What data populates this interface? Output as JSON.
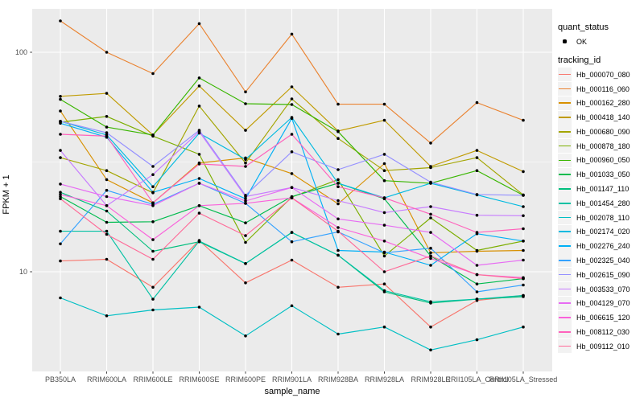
{
  "figure": {
    "background": "#FFFFFF",
    "panel_background": "#EBEBEB",
    "grid_color": "#FFFFFF",
    "axis_text_color": "#4D4D4D",
    "point_color": "#000000"
  },
  "legend": {
    "quant_status_title": "quant_status",
    "quant_status_value": "OK",
    "tracking_title": "tracking_id"
  },
  "chart_data": {
    "type": "line",
    "title": "",
    "xlabel": "sample_name",
    "ylabel": "FPKM + 1",
    "y_scale": "log10",
    "y_ticks": [
      {
        "label": "100",
        "value": 100
      },
      {
        "label": "10",
        "value": 10
      }
    ],
    "y_minor_ticks": [
      31.62
    ],
    "ylim": [
      3.8,
      170
    ],
    "legend_position": "right",
    "grid": true,
    "point_shape": "solid-dot",
    "quant_status_series": "OK",
    "categories": [
      "PB350LA",
      "RRIM600LA",
      "RRIM600LE",
      "RRIM600SE",
      "RRIM600PE",
      "RRIM901LA",
      "RRIM928BA",
      "RRIM928LA",
      "RRIM928LE",
      "RRII105LA_Control",
      "RRII105LA_Stressed"
    ],
    "series": [
      {
        "name": "Hb_000070_080",
        "color": "#F8766D",
        "values": [
          11.2,
          11.4,
          8.5,
          13.9,
          8.9,
          11.3,
          8.5,
          8.8,
          5.6,
          7.4,
          7.8
        ]
      },
      {
        "name": "Hb_000116_060",
        "color": "#EA8331",
        "values": [
          139,
          100,
          80,
          135,
          66,
          121,
          58,
          58,
          38.6,
          59,
          49
        ]
      },
      {
        "name": "Hb_000162_280",
        "color": "#D89000",
        "values": [
          54,
          26.3,
          20.6,
          31.3,
          33,
          28,
          20.4,
          31.1,
          12.2,
          12.4,
          12.5
        ]
      },
      {
        "name": "Hb_000418_140",
        "color": "#C09B00",
        "values": [
          63,
          65,
          42,
          70.2,
          44.1,
          69.6,
          43.8,
          49,
          30.2,
          35.7,
          28.6
        ]
      },
      {
        "name": "Hb_000680_090",
        "color": "#A3A500",
        "values": [
          33.1,
          28.9,
          22.9,
          56.9,
          31.3,
          61.3,
          40.5,
          28.9,
          29.8,
          33.1,
          22.4
        ]
      },
      {
        "name": "Hb_000878_180",
        "color": "#7CAE00",
        "values": [
          48,
          51,
          41.5,
          34.3,
          13.6,
          21.9,
          26.3,
          11.8,
          17.6,
          12.5,
          13.8
        ]
      },
      {
        "name": "Hb_000960_050",
        "color": "#39B600",
        "values": [
          61,
          45.6,
          42,
          76.4,
          58.3,
          57.8,
          43.5,
          26,
          25.3,
          28.9,
          22.3
        ]
      },
      {
        "name": "Hb_001033_050",
        "color": "#00BB4E",
        "values": [
          22,
          16.8,
          16.9,
          20,
          16.7,
          22,
          25.3,
          21.5,
          11.8,
          8.8,
          9.3
        ]
      },
      {
        "name": "Hb_001147_110",
        "color": "#00BF7D",
        "values": [
          23,
          18.9,
          12.4,
          13.7,
          10.9,
          15.1,
          11.9,
          8.1,
          7.2,
          7.5,
          7.7
        ]
      },
      {
        "name": "Hb_001454_280",
        "color": "#00C1A3",
        "values": [
          15.3,
          15.3,
          7.5,
          13.8,
          10.9,
          15.1,
          11.9,
          8.2,
          7.3,
          7.5,
          7.8
        ]
      },
      {
        "name": "Hb_002078_110",
        "color": "#00BFC4",
        "values": [
          7.6,
          6.3,
          6.7,
          6.9,
          5.1,
          7.0,
          5.2,
          5.6,
          4.4,
          4.9,
          5.6
        ]
      },
      {
        "name": "Hb_002174_020",
        "color": "#00BAE0",
        "values": [
          48.5,
          42,
          24.4,
          42.8,
          32.5,
          50.5,
          25.3,
          21.7,
          25.3,
          22.4,
          19.8
        ]
      },
      {
        "name": "Hb_002276_240",
        "color": "#00B0F6",
        "values": [
          47.5,
          41,
          23,
          26.6,
          21.5,
          50,
          12.5,
          12.3,
          10.7,
          14.9,
          13.8
        ]
      },
      {
        "name": "Hb_002325_040",
        "color": "#35A2FF",
        "values": [
          13.4,
          23.5,
          20.3,
          25.3,
          20.5,
          13.7,
          15.2,
          12.2,
          12.8,
          8.1,
          8.7
        ]
      },
      {
        "name": "Hb_002615_090",
        "color": "#9590FF",
        "values": [
          48.5,
          43,
          30.2,
          44.1,
          22.3,
          35.2,
          29.2,
          34.3,
          25.6,
          22.5,
          22.3
        ]
      },
      {
        "name": "Hb_003533_070",
        "color": "#C77CFF",
        "values": [
          35.7,
          20,
          27.7,
          43.5,
          22,
          24.2,
          21.1,
          18.6,
          19.8,
          18.1,
          18
        ]
      },
      {
        "name": "Hb_004129_070",
        "color": "#E76BF3",
        "values": [
          25.1,
          22,
          20,
          25.3,
          21,
          24.2,
          17.4,
          16.3,
          15.1,
          10.7,
          11.3
        ]
      },
      {
        "name": "Hb_006615_120",
        "color": "#FA62DB",
        "values": [
          22.5,
          20,
          14,
          20,
          20.5,
          21.7,
          15.9,
          13.8,
          11.5,
          9.7,
          9.4
        ]
      },
      {
        "name": "Hb_008112_030",
        "color": "#FF62BC",
        "values": [
          42.3,
          41.5,
          20.6,
          31,
          30.2,
          42.3,
          24.4,
          21.7,
          18.3,
          15.1,
          15.7
        ]
      },
      {
        "name": "Hb_009112_010",
        "color": "#FF6A98",
        "values": [
          21.5,
          14.8,
          11.4,
          18.5,
          14.6,
          21.7,
          15.3,
          10,
          11.8,
          9.7,
          9.3
        ]
      }
    ]
  }
}
